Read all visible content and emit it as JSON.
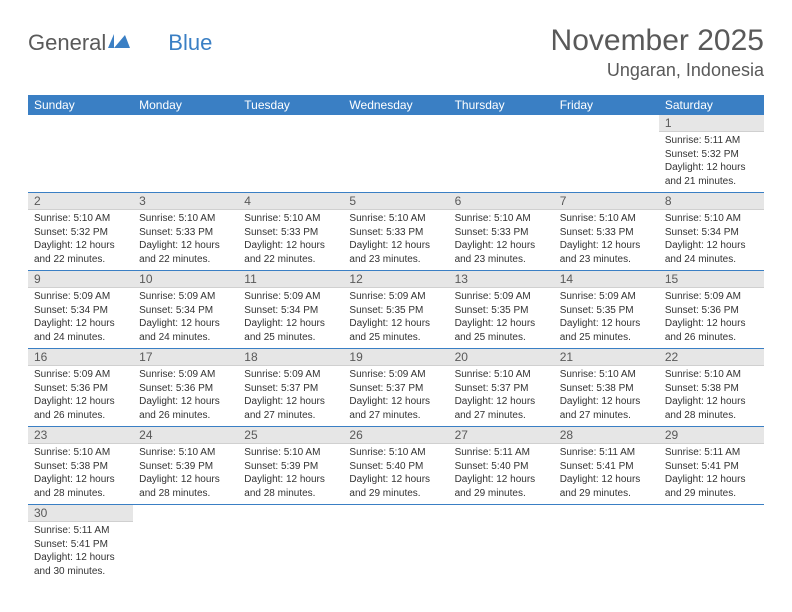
{
  "logo": {
    "text_general": "General",
    "text_blue": "Blue"
  },
  "header": {
    "month": "November 2025",
    "location": "Ungaran, Indonesia"
  },
  "colors": {
    "header_bg": "#3a7fc4",
    "daynum_bg": "#e6e6e6",
    "text": "#595959",
    "border": "#3a7fc4"
  },
  "daynames": [
    "Sunday",
    "Monday",
    "Tuesday",
    "Wednesday",
    "Thursday",
    "Friday",
    "Saturday"
  ],
  "labels": {
    "sunrise": "Sunrise:",
    "sunset": "Sunset:",
    "daylight_prefix": "Daylight:",
    "daylight_unit1": "hours",
    "daylight_unit2": "minutes."
  },
  "weeks": [
    [
      null,
      null,
      null,
      null,
      null,
      null,
      {
        "n": "1",
        "sr": "5:11 AM",
        "ss": "5:32 PM",
        "dh": "12",
        "dm": "21"
      }
    ],
    [
      {
        "n": "2",
        "sr": "5:10 AM",
        "ss": "5:32 PM",
        "dh": "12",
        "dm": "22"
      },
      {
        "n": "3",
        "sr": "5:10 AM",
        "ss": "5:33 PM",
        "dh": "12",
        "dm": "22"
      },
      {
        "n": "4",
        "sr": "5:10 AM",
        "ss": "5:33 PM",
        "dh": "12",
        "dm": "22"
      },
      {
        "n": "5",
        "sr": "5:10 AM",
        "ss": "5:33 PM",
        "dh": "12",
        "dm": "23"
      },
      {
        "n": "6",
        "sr": "5:10 AM",
        "ss": "5:33 PM",
        "dh": "12",
        "dm": "23"
      },
      {
        "n": "7",
        "sr": "5:10 AM",
        "ss": "5:33 PM",
        "dh": "12",
        "dm": "23"
      },
      {
        "n": "8",
        "sr": "5:10 AM",
        "ss": "5:34 PM",
        "dh": "12",
        "dm": "24"
      }
    ],
    [
      {
        "n": "9",
        "sr": "5:09 AM",
        "ss": "5:34 PM",
        "dh": "12",
        "dm": "24"
      },
      {
        "n": "10",
        "sr": "5:09 AM",
        "ss": "5:34 PM",
        "dh": "12",
        "dm": "24"
      },
      {
        "n": "11",
        "sr": "5:09 AM",
        "ss": "5:34 PM",
        "dh": "12",
        "dm": "25"
      },
      {
        "n": "12",
        "sr": "5:09 AM",
        "ss": "5:35 PM",
        "dh": "12",
        "dm": "25"
      },
      {
        "n": "13",
        "sr": "5:09 AM",
        "ss": "5:35 PM",
        "dh": "12",
        "dm": "25"
      },
      {
        "n": "14",
        "sr": "5:09 AM",
        "ss": "5:35 PM",
        "dh": "12",
        "dm": "25"
      },
      {
        "n": "15",
        "sr": "5:09 AM",
        "ss": "5:36 PM",
        "dh": "12",
        "dm": "26"
      }
    ],
    [
      {
        "n": "16",
        "sr": "5:09 AM",
        "ss": "5:36 PM",
        "dh": "12",
        "dm": "26"
      },
      {
        "n": "17",
        "sr": "5:09 AM",
        "ss": "5:36 PM",
        "dh": "12",
        "dm": "26"
      },
      {
        "n": "18",
        "sr": "5:09 AM",
        "ss": "5:37 PM",
        "dh": "12",
        "dm": "27"
      },
      {
        "n": "19",
        "sr": "5:09 AM",
        "ss": "5:37 PM",
        "dh": "12",
        "dm": "27"
      },
      {
        "n": "20",
        "sr": "5:10 AM",
        "ss": "5:37 PM",
        "dh": "12",
        "dm": "27"
      },
      {
        "n": "21",
        "sr": "5:10 AM",
        "ss": "5:38 PM",
        "dh": "12",
        "dm": "27"
      },
      {
        "n": "22",
        "sr": "5:10 AM",
        "ss": "5:38 PM",
        "dh": "12",
        "dm": "28"
      }
    ],
    [
      {
        "n": "23",
        "sr": "5:10 AM",
        "ss": "5:38 PM",
        "dh": "12",
        "dm": "28"
      },
      {
        "n": "24",
        "sr": "5:10 AM",
        "ss": "5:39 PM",
        "dh": "12",
        "dm": "28"
      },
      {
        "n": "25",
        "sr": "5:10 AM",
        "ss": "5:39 PM",
        "dh": "12",
        "dm": "28"
      },
      {
        "n": "26",
        "sr": "5:10 AM",
        "ss": "5:40 PM",
        "dh": "12",
        "dm": "29"
      },
      {
        "n": "27",
        "sr": "5:11 AM",
        "ss": "5:40 PM",
        "dh": "12",
        "dm": "29"
      },
      {
        "n": "28",
        "sr": "5:11 AM",
        "ss": "5:41 PM",
        "dh": "12",
        "dm": "29"
      },
      {
        "n": "29",
        "sr": "5:11 AM",
        "ss": "5:41 PM",
        "dh": "12",
        "dm": "29"
      }
    ],
    [
      {
        "n": "30",
        "sr": "5:11 AM",
        "ss": "5:41 PM",
        "dh": "12",
        "dm": "30"
      },
      null,
      null,
      null,
      null,
      null,
      null
    ]
  ]
}
